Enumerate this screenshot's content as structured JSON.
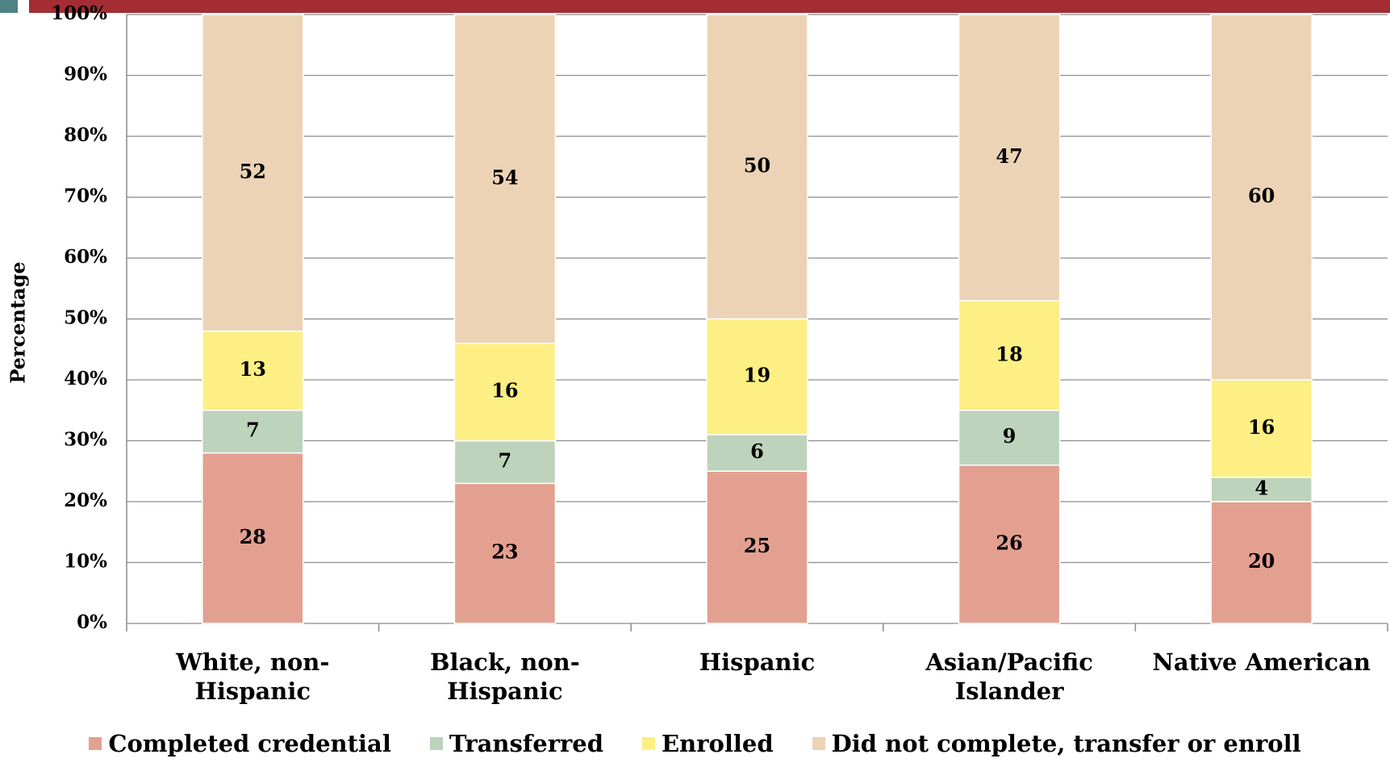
{
  "chart_data": {
    "type": "stacked_bar",
    "ylabel": "Percentage",
    "categories": [
      "White, non-Hispanic",
      "Black, non-Hispanic",
      "Hispanic",
      "Asian/Pacific Islander",
      "Native American"
    ],
    "series": [
      {
        "name": "Completed credential",
        "color": "#e3a090",
        "values": [
          28,
          23,
          25,
          26,
          20
        ]
      },
      {
        "name": "Transferred",
        "color": "#bdd3bb",
        "values": [
          7,
          7,
          6,
          9,
          4
        ]
      },
      {
        "name": "Enrolled",
        "color": "#fdef84",
        "values": [
          13,
          16,
          19,
          18,
          16
        ]
      },
      {
        "name": "Did not complete, transfer or enroll",
        "color": "#edd3b5",
        "values": [
          52,
          54,
          50,
          47,
          60
        ]
      }
    ],
    "ylim": [
      0,
      100
    ],
    "yticks": [
      {
        "value": 0,
        "label": "0%"
      },
      {
        "value": 10,
        "label": "10%"
      },
      {
        "value": 20,
        "label": "20%"
      },
      {
        "value": 30,
        "label": "30%"
      },
      {
        "value": 40,
        "label": "40%"
      },
      {
        "value": 50,
        "label": "50%"
      },
      {
        "value": 60,
        "label": "60%"
      },
      {
        "value": 70,
        "label": "70%"
      },
      {
        "value": 80,
        "label": "80%"
      },
      {
        "value": 90,
        "label": "90%"
      },
      {
        "value": 100,
        "label": "100%"
      }
    ],
    "grid": true,
    "legend": "bottom"
  }
}
